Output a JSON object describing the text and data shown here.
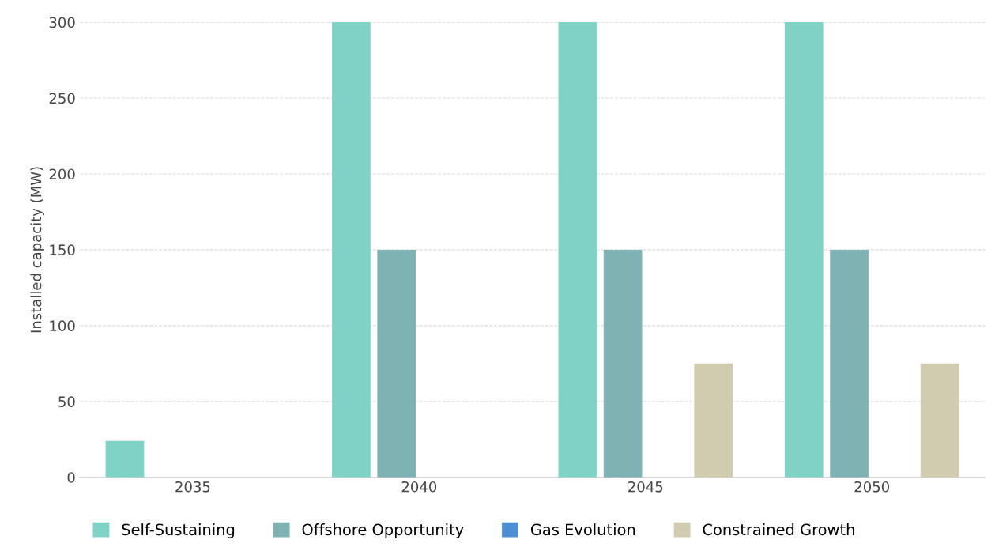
{
  "chart_data": {
    "type": "bar",
    "ylabel": "Installed capacity (MW)",
    "categories": [
      "2035",
      "2040",
      "2045",
      "2050"
    ],
    "series": [
      {
        "name": "Self-Sustaining",
        "color": "#7fd3c6",
        "values": [
          24,
          300,
          300,
          300
        ]
      },
      {
        "name": "Offshore Opportunity",
        "color": "#7fb3b3",
        "values": [
          0,
          150,
          150,
          150
        ]
      },
      {
        "name": "Gas Evolution",
        "color": "#4a8fd3",
        "values": [
          0,
          0,
          0,
          0
        ]
      },
      {
        "name": "Constrained Growth",
        "color": "#d1ccb0",
        "values": [
          0,
          0,
          75,
          75
        ]
      }
    ],
    "ylim": [
      0,
      300
    ],
    "yticks": [
      0,
      50,
      100,
      150,
      200,
      250,
      300
    ],
    "grid": "y",
    "legend": "bottom"
  }
}
